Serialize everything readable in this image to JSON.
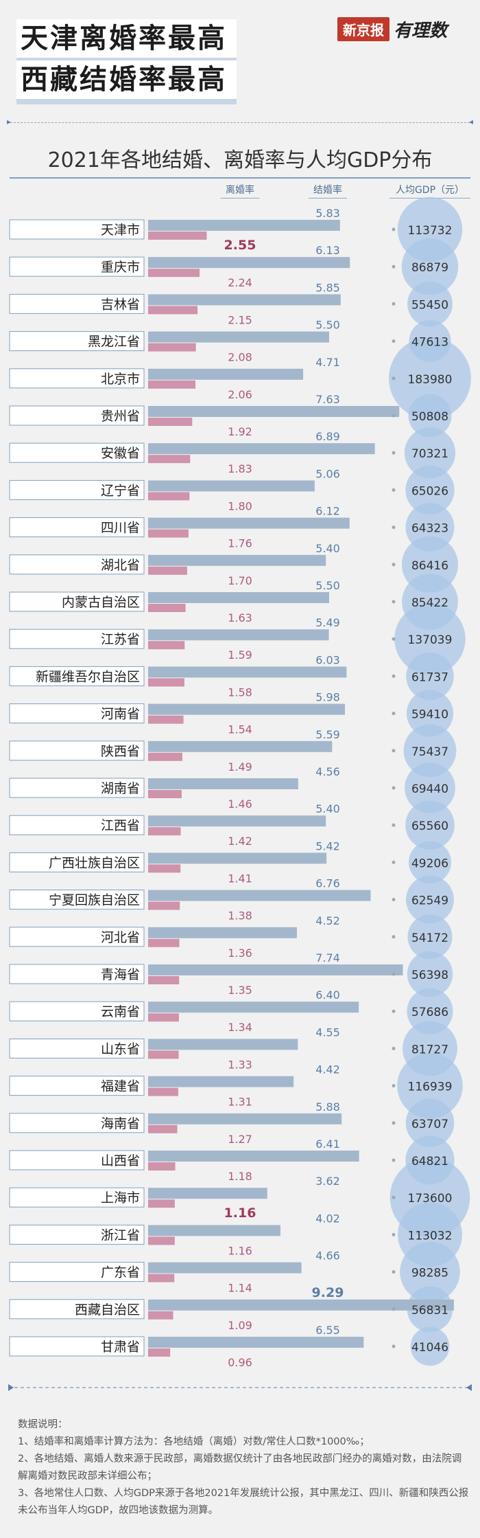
{
  "header": {
    "headline_1": "天津离婚率最高",
    "headline_2": "西藏结婚率最高",
    "logo_box": "新京报",
    "logo_script": "有理数"
  },
  "chart_data": {
    "type": "bar",
    "title": "2021年各地结婚、离婚率与人均GDP分布",
    "columns": {
      "divorce": "离婚率",
      "marriage": "结婚率",
      "gdp": "人均GDP（元）"
    },
    "categories": [
      "天津市",
      "重庆市",
      "吉林省",
      "黑龙江省",
      "北京市",
      "贵州省",
      "安徽省",
      "辽宁省",
      "四川省",
      "湖北省",
      "内蒙古自治区",
      "江苏省",
      "新疆维吾尔自治区",
      "河南省",
      "陕西省",
      "湖南省",
      "江西省",
      "广西壮族自治区",
      "宁夏回族自治区",
      "河北省",
      "青海省",
      "云南省",
      "山东省",
      "福建省",
      "海南省",
      "山西省",
      "上海市",
      "浙江省",
      "广东省",
      "西藏自治区",
      "甘肃省"
    ],
    "series": [
      {
        "name": "结婚率",
        "color": "#a3b7cc",
        "values": [
          5.83,
          6.13,
          5.85,
          5.5,
          4.71,
          7.63,
          6.89,
          5.06,
          6.12,
          5.4,
          5.5,
          5.49,
          6.03,
          5.98,
          5.59,
          4.56,
          5.4,
          5.42,
          6.76,
          4.52,
          7.74,
          6.4,
          4.55,
          4.42,
          5.88,
          6.41,
          3.62,
          4.02,
          4.66,
          9.29,
          6.55
        ]
      },
      {
        "name": "离婚率",
        "color": "#cf93ab",
        "values": [
          2.55,
          2.24,
          2.15,
          2.08,
          2.06,
          1.92,
          1.83,
          1.8,
          1.76,
          1.7,
          1.63,
          1.59,
          1.58,
          1.54,
          1.49,
          1.46,
          1.42,
          1.41,
          1.38,
          1.36,
          1.35,
          1.34,
          1.33,
          1.31,
          1.27,
          1.18,
          1.16,
          1.16,
          1.14,
          1.09,
          0.96
        ]
      },
      {
        "name": "人均GDP（元）",
        "color": "#a9c6e6",
        "values": [
          113732,
          86879,
          55450,
          47613,
          183980,
          50808,
          70321,
          65026,
          64323,
          86416,
          85422,
          137039,
          61737,
          59410,
          75437,
          69440,
          65560,
          49206,
          62549,
          54172,
          56398,
          57686,
          81727,
          116939,
          63707,
          64821,
          173600,
          113032,
          98285,
          56831,
          41046
        ]
      }
    ],
    "emphasized": [
      "天津市",
      "上海市",
      "西藏自治区"
    ]
  },
  "notes": {
    "heading": "数据说明：",
    "line_1": "1、结婚率和离婚率计算方法为：各地结婚（离婚）对数/常住人口数*1000‰；",
    "line_2": "2、各地结婚、离婚人数来源于民政部，离婚数据仅统计了由各地民政部门经办的离婚对数，由法院调解离婚对数民政部未详细公布；",
    "line_3": "3、各地常住人口数、人均GDP来源于各地2021年发展统计公报，其中黑龙江、四川、新疆和陕西公报未公布当年人均GDP，故四地该数据为测算。"
  }
}
